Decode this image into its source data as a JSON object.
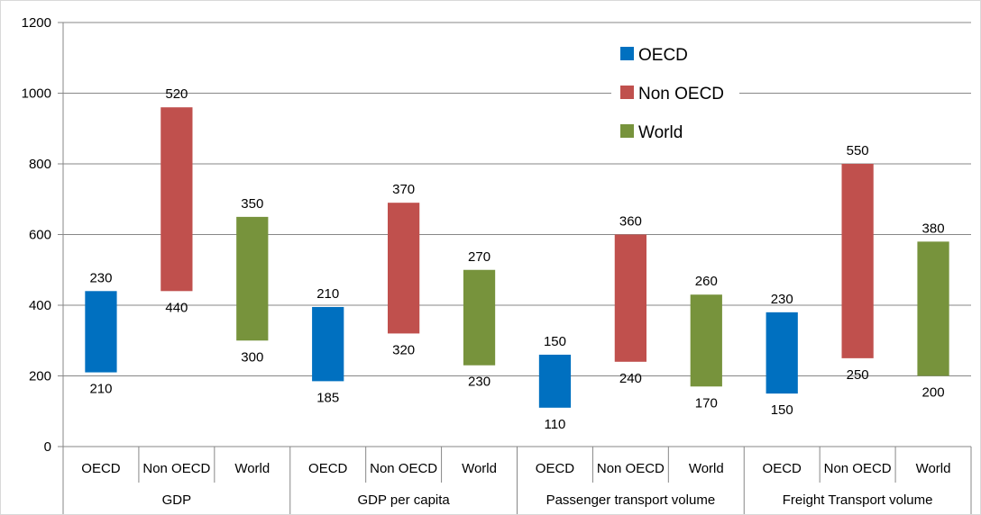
{
  "chart_data": {
    "type": "bar",
    "subtype": "floating-range",
    "title": "",
    "xlabel": "",
    "ylabel": "",
    "ylim": [
      0,
      1200
    ],
    "yticks": [
      0,
      200,
      400,
      600,
      800,
      1000,
      1200
    ],
    "grid": true,
    "legend_position": "top-right",
    "groups": [
      "GDP",
      "GDP per capita",
      "Passenger transport volume",
      "Freight Transport volume"
    ],
    "categories": [
      "OECD",
      "Non OECD",
      "World"
    ],
    "series": [
      {
        "name": "OECD",
        "color": "#0070C0"
      },
      {
        "name": "Non OECD",
        "color": "#C0504D"
      },
      {
        "name": "World",
        "color": "#77933C"
      }
    ],
    "bars": [
      {
        "group": "GDP",
        "category": "OECD",
        "low": 210,
        "high": 440,
        "top_label": "230",
        "bottom_label": "210"
      },
      {
        "group": "GDP",
        "category": "Non OECD",
        "low": 440,
        "high": 960,
        "top_label": "520",
        "bottom_label": "440"
      },
      {
        "group": "GDP",
        "category": "World",
        "low": 300,
        "high": 650,
        "top_label": "350",
        "bottom_label": "300"
      },
      {
        "group": "GDP per capita",
        "category": "OECD",
        "low": 185,
        "high": 395,
        "top_label": "210",
        "bottom_label": "185"
      },
      {
        "group": "GDP per capita",
        "category": "Non OECD",
        "low": 320,
        "high": 690,
        "top_label": "370",
        "bottom_label": "320"
      },
      {
        "group": "GDP per capita",
        "category": "World",
        "low": 230,
        "high": 500,
        "top_label": "270",
        "bottom_label": "230"
      },
      {
        "group": "Passenger transport volume",
        "category": "OECD",
        "low": 110,
        "high": 260,
        "top_label": "150",
        "bottom_label": "110"
      },
      {
        "group": "Passenger transport volume",
        "category": "Non OECD",
        "low": 240,
        "high": 600,
        "top_label": "360",
        "bottom_label": "240"
      },
      {
        "group": "Passenger transport volume",
        "category": "World",
        "low": 170,
        "high": 430,
        "top_label": "260",
        "bottom_label": "170"
      },
      {
        "group": "Freight Transport volume",
        "category": "OECD",
        "low": 150,
        "high": 380,
        "top_label": "230",
        "bottom_label": "150"
      },
      {
        "group": "Freight Transport volume",
        "category": "Non OECD",
        "low": 250,
        "high": 800,
        "top_label": "550",
        "bottom_label": "250"
      },
      {
        "group": "Freight Transport volume",
        "category": "World",
        "low": 200,
        "high": 580,
        "top_label": "380",
        "bottom_label": "200"
      }
    ]
  }
}
